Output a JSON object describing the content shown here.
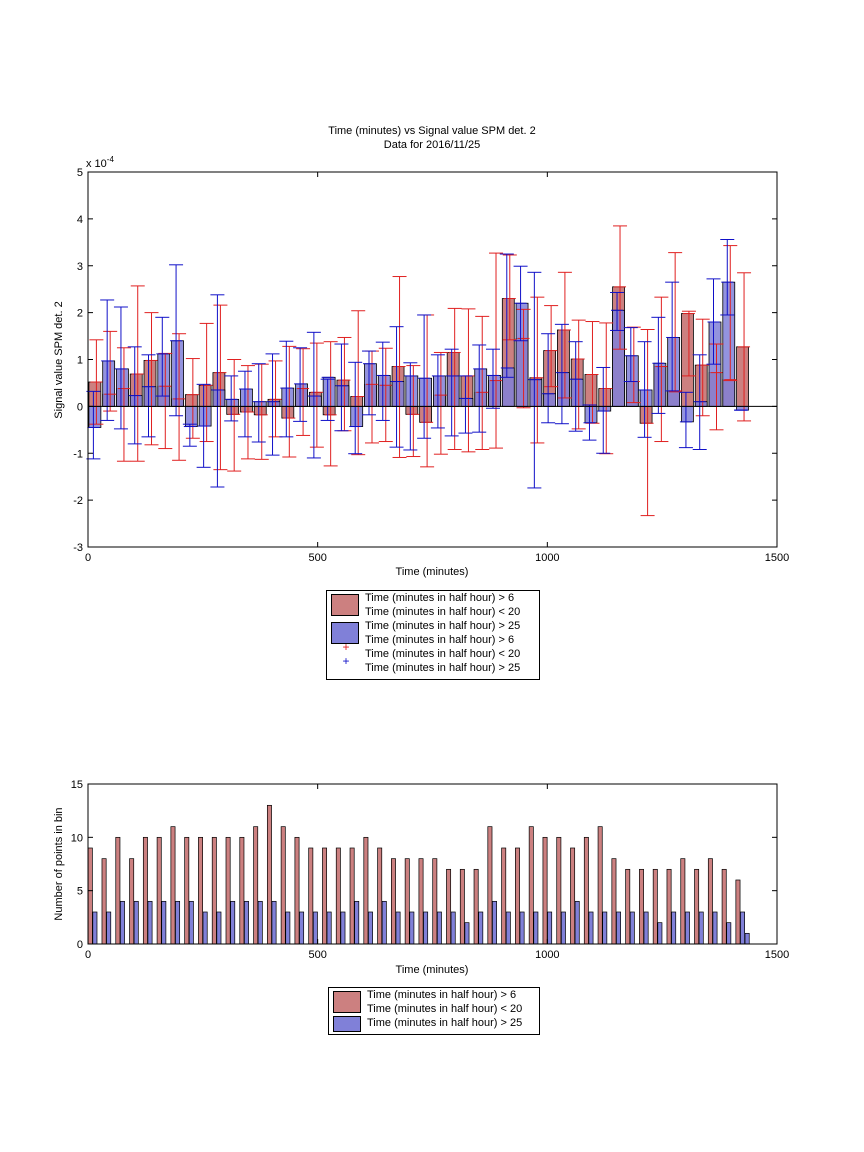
{
  "colors": {
    "red_fill": "#cc8080",
    "blue_fill": "#8080d8",
    "red_err": "#e02020",
    "blue_err": "#1010c8"
  },
  "chart_data": [
    {
      "type": "bar",
      "title": "Time (minutes) vs Signal value SPM det. 2",
      "subtitle": "Data for 2016/11/25",
      "xlabel": "Time (minutes)",
      "ylabel": "Signal value SPM det. 2",
      "exponent_label": "x 10",
      "exponent_power": "-4",
      "xlim": [
        0,
        1500
      ],
      "ylim": [
        -3,
        5
      ],
      "xticks": [
        "0",
        "500",
        "1000",
        "1500"
      ],
      "yticks": [
        "-3",
        "-2",
        "-1",
        "0",
        "1",
        "2",
        "3",
        "4",
        "5"
      ],
      "grid": false,
      "legend_position": "below",
      "legend": [
        "Time (minutes in half hour) > 6",
        "Time (minutes in half hour) < 20",
        "Time (minutes in half hour) > 25",
        "Time (minutes in half hour) > 6",
        "Time (minutes in half hour) < 20",
        "Time (minutes in half hour) > 25"
      ],
      "legend_markers": [
        "+",
        "+"
      ],
      "x": [
        15,
        45,
        75,
        105,
        135,
        165,
        195,
        225,
        255,
        285,
        315,
        345,
        375,
        405,
        435,
        465,
        495,
        525,
        555,
        585,
        615,
        645,
        675,
        705,
        735,
        765,
        795,
        825,
        855,
        885,
        915,
        945,
        975,
        1005,
        1035,
        1065,
        1095,
        1125,
        1155,
        1185,
        1215,
        1245,
        1275,
        1305,
        1335,
        1365,
        1395,
        1425
      ],
      "series": [
        {
          "values": [
            0.52,
            0.26,
            0.38,
            0.69,
            0.98,
            0.43,
            0.16,
            0.25,
            0.45,
            0.72,
            -0.17,
            -0.12,
            -0.18,
            0.15,
            -0.25,
            0.38,
            0.3,
            -0.18,
            0.56,
            0.21,
            0.47,
            0.45,
            0.85,
            -0.17,
            -0.34,
            0.24,
            1.15,
            0.65,
            0.3,
            0.55,
            2.3,
            1.45,
            0.61,
            1.19,
            1.63,
            1.01,
            0.68,
            0.38,
            2.55,
            0.53,
            -0.36,
            0.85,
            0.31,
            1.98,
            0.88,
            0.72,
            0.57,
            1.27
          ],
          "err_low": [
            -0.38,
            -0.1,
            -1.17,
            -1.17,
            -0.82,
            -0.9,
            -1.15,
            -0.68,
            -0.75,
            -1.35,
            -1.38,
            -1.12,
            -1.13,
            -0.65,
            -1.08,
            -0.62,
            -0.87,
            -1.27,
            -0.52,
            -1.03,
            -0.78,
            -0.75,
            -1.09,
            -1.07,
            -1.29,
            -1.02,
            -0.92,
            -0.97,
            -0.92,
            -0.89,
            1.42,
            -0.03,
            -0.78,
            0.42,
            0.18,
            -0.48,
            -0.36,
            -1.01,
            1.22,
            0.08,
            -2.33,
            -0.75,
            0.33,
            0.65,
            -0.2,
            -0.5,
            0.55,
            -0.31
          ],
          "err_high": [
            1.42,
            1.6,
            1.25,
            2.57,
            2.0,
            1.13,
            1.55,
            1.02,
            1.77,
            2.16,
            1.0,
            0.87,
            0.9,
            0.97,
            1.28,
            1.23,
            1.35,
            1.38,
            1.47,
            2.04,
            1.18,
            1.24,
            2.77,
            0.87,
            1.95,
            1.15,
            2.09,
            2.08,
            1.92,
            3.27,
            3.23,
            2.07,
            2.33,
            2.15,
            2.86,
            1.84,
            1.81,
            1.78,
            3.85,
            1.69,
            1.64,
            2.33,
            3.28,
            2.03,
            1.86,
            1.33,
            3.43,
            2.85
          ]
        },
        {
          "values": [
            -0.45,
            0.97,
            0.8,
            0.23,
            0.42,
            1.12,
            1.4,
            -0.43,
            -0.42,
            0.35,
            0.15,
            0.37,
            0.1,
            0.1,
            0.39,
            0.48,
            0.22,
            0.62,
            0.44,
            -0.43,
            0.91,
            0.66,
            0.53,
            0.65,
            0.6,
            0.65,
            0.65,
            0.17,
            0.8,
            0.66,
            0.82,
            2.2,
            0.57,
            0.27,
            0.72,
            0.58,
            -0.35,
            -0.1,
            2.05,
            1.08,
            0.35,
            0.92,
            1.47,
            -0.33,
            0.1,
            1.8,
            2.65,
            -0.08
          ],
          "err_low": [
            -1.12,
            -0.3,
            -0.48,
            -0.8,
            -0.65,
            0.22,
            -0.2,
            -0.85,
            -1.3,
            -1.72,
            -0.31,
            -0.65,
            -0.76,
            -1.04,
            -0.65,
            -0.32,
            -1.1,
            -0.3,
            -0.52,
            -1.01,
            -0.18,
            -0.3,
            -0.87,
            -0.93,
            -0.68,
            -0.46,
            -0.63,
            -0.57,
            -0.55,
            -0.04,
            0.62,
            1.4,
            -1.74,
            -0.35,
            -0.37,
            -0.53,
            -0.72,
            -1.0,
            1.62,
            0.53,
            -0.66,
            -0.15,
            0.33,
            -0.88,
            -0.92,
            0.9,
            1.95,
            -0.08
          ],
          "err_high": [
            0.32,
            2.27,
            2.12,
            1.27,
            1.1,
            1.9,
            3.02,
            -0.38,
            0.47,
            2.38,
            0.65,
            0.75,
            0.91,
            1.12,
            1.39,
            1.25,
            1.58,
            0.58,
            1.33,
            0.94,
            1.18,
            1.37,
            1.7,
            0.93,
            1.95,
            1.1,
            1.22,
            0.65,
            1.31,
            1.22,
            3.25,
            2.99,
            2.86,
            1.55,
            1.75,
            1.38,
            0.03,
            0.83,
            2.43,
            1.68,
            1.38,
            1.9,
            2.65,
            0.3,
            1.1,
            2.72,
            3.56,
            -0.08
          ]
        }
      ]
    },
    {
      "type": "bar",
      "xlabel": "Time (minutes)",
      "ylabel": "Number of points in bin",
      "xlim": [
        0,
        1500
      ],
      "ylim": [
        0,
        15
      ],
      "xticks": [
        "0",
        "500",
        "1000",
        "1500"
      ],
      "yticks": [
        "0",
        "5",
        "10",
        "15"
      ],
      "grid": false,
      "legend_position": "below",
      "legend": [
        "Time (minutes in half hour) > 6",
        "Time (minutes in half hour) < 20",
        "Time (minutes in half hour) > 25"
      ],
      "x": [
        5,
        65,
        125,
        185,
        245,
        305,
        365,
        425,
        485,
        545,
        605,
        665,
        725,
        785,
        845,
        905,
        965,
        1025,
        1085,
        1145,
        1205,
        1265,
        1325,
        1385
      ],
      "series": [
        {
          "x": [
            5,
            35,
            65,
            95,
            125,
            155,
            185,
            215,
            245,
            275,
            305,
            335,
            365,
            395,
            425,
            455,
            485,
            515,
            545,
            575,
            605,
            635,
            665,
            695,
            725,
            755,
            785,
            815,
            845,
            875,
            905,
            935,
            965,
            995,
            1025,
            1055,
            1085,
            1115,
            1145,
            1175,
            1205,
            1235,
            1265,
            1295,
            1325,
            1355,
            1385,
            1415
          ],
          "values": [
            9,
            8,
            10,
            8,
            10,
            10,
            11,
            10,
            10,
            10,
            10,
            10,
            11,
            13,
            11,
            10,
            9,
            9,
            9,
            9,
            10,
            9,
            8,
            8,
            8,
            8,
            7,
            7,
            7,
            11,
            9,
            9,
            11,
            10,
            10,
            9,
            10,
            11,
            8,
            7,
            7,
            7,
            7,
            8,
            7,
            8,
            7,
            6
          ]
        },
        {
          "x": [
            15,
            45,
            75,
            105,
            135,
            165,
            195,
            225,
            255,
            285,
            315,
            345,
            375,
            405,
            435,
            465,
            495,
            525,
            555,
            585,
            615,
            645,
            675,
            705,
            735,
            765,
            795,
            825,
            855,
            885,
            915,
            945,
            975,
            1005,
            1035,
            1065,
            1095,
            1125,
            1155,
            1185,
            1215,
            1245,
            1275,
            1305,
            1335,
            1365,
            1395,
            1425
          ],
          "values": [
            3,
            3,
            4,
            4,
            4,
            4,
            4,
            4,
            3,
            3,
            4,
            4,
            4,
            4,
            3,
            3,
            3,
            3,
            3,
            4,
            3,
            4,
            3,
            3,
            3,
            3,
            3,
            2,
            3,
            4,
            3,
            3,
            3,
            3,
            3,
            4,
            3,
            3,
            3,
            3,
            3,
            2,
            3,
            3,
            3,
            3,
            2,
            3
          ]
        }
      ],
      "extra_bar": {
        "x": 1435,
        "value": 1
      }
    }
  ]
}
